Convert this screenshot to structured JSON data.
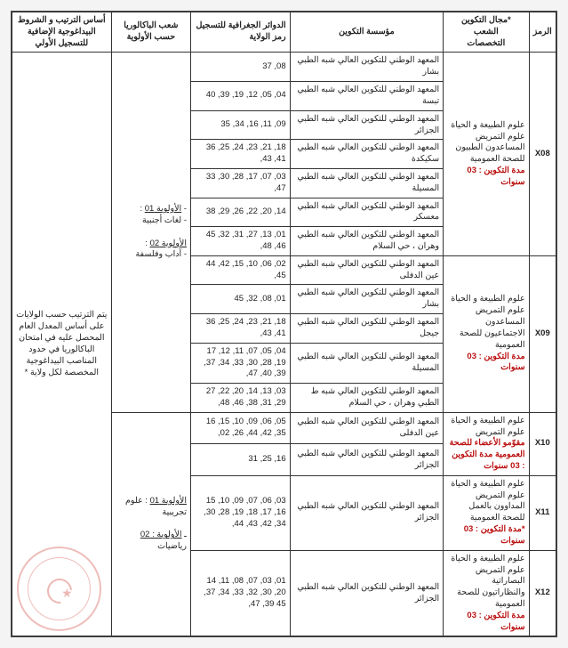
{
  "headers": {
    "code": "الرمز",
    "field": "*مجال التكوين\nالشعب\nالتخصصات",
    "inst": "مؤسسة التكوين",
    "geo": "الدوائر الجغرافية للتسجيل\nرمز الولاية",
    "bac": "شعب الباكالوريا\nحسب الأولوية",
    "rank": "أساس الترتيب و الشروط\nالبيداغوجية الإضافية\nللتسجيل الأولي"
  },
  "bac_text_1": "- الأولوية 01 :\n- لغات أجنبية\n\nالأولوية 02 :\n- آداب وفلسفة",
  "bac_text_2": "الأولوية 01 : علوم تجريبية\n\nـ الأولوية : 02 رياضيات",
  "rank_text": "يتم الترتيب حسب الولايات على أساس المعدل العام المحصل عليه في امتحان الباكالوريا في حدود المناصب البيداغوجية المخصصة لكل ولاية *",
  "rows": [
    {
      "code": "X08",
      "rowspan": 7,
      "field": "علوم الطبيعة و الحياة\nعلوم التمريض\nالمساعدون الطبيون للصحة العمومية\nمدة التكوين : 03 سنوات",
      "inst": [
        "المعهد الوطني للتكوين العالي شبه الطبي بشار",
        "المعهد الوطني للتكوين العالي شبه الطبي تبسة",
        "المعهد الوطني للتكوين العالي شبه الطبي الجزائر",
        "المعهد الوطني للتكوين العالي شبه الطبي سكيكدة",
        "المعهد الوطني للتكوين العالي شبه الطبي المسيلة",
        "المعهد الوطني للتكوين العالي شبه الطبي معسكر",
        "المعهد الوطني للتكوين العالي شبه الطبي وهران ، حي السلام"
      ],
      "geo": [
        "37 ,08",
        "40 ,39 ,19 ,12 ,05 ,04",
        "35 ,34 ,16 ,11 ,09",
        "36 ,25 ,24 ,23 ,21 ,18 ,43 ,41",
        "33 ,30 ,28 ,17 ,07 ,03 ,47",
        "38 ,29 ,26 ,22 ,20 ,14",
        "45 ,32 ,31 ,27 ,13 ,01 ,48 ,46"
      ]
    },
    {
      "code": "X09",
      "rowspan": 5,
      "field": "علوم الطبيعة و الحياة\nعلوم التمريض\nالمساعدون الاجتماعيون للصحة العمومية\nمدة التكوين : 03 سنوات",
      "inst": [
        "المعهد الوطني للتكوين العالي شبه الطبي عين الدفلى",
        "المعهد الوطني للتكوين العالي شبه الطبي بشار",
        "المعهد الوطني للتكوين العالي شبه الطبي جيجل",
        "المعهد الوطني للتكوين العالي شبه الطبي المسيلة",
        "المعهد الوطني للتكوين العالي شبه ط الطبي وهران ، حي السلام"
      ],
      "geo": [
        "44 ,42 ,15 ,10 ,06 ,02 ,45",
        "45 ,32 ,08 ,01",
        "36 ,25 ,24 ,23 ,21 ,18 ,43 ,41",
        "17 ,12 ,11 ,07 ,05 ,04 ,37 ,34 ,33 ,30 ,28 ,19 ,47 ,40 ,39",
        "27 ,22 ,20 ,14 ,13 ,03 ,48 ,46 ,38 ,31 ,29"
      ]
    },
    {
      "code": "X10",
      "rowspan": 2,
      "field": "علوم الطبيعة و الحياة\nعلوم التمريض\nمقوّمو الأعضاء للصحة العمومية       مدة التكوين : 03 سنوات",
      "inst": [
        "المعهد الوطني للتكوين العالي شبه الطبي عين الدفلى",
        "المعهد الوطني للتكوين العالي شبه الطبي الجزائر"
      ],
      "geo": [
        "16 ,15 ,10 ,09 ,06 ,05 ,02 ,26 ,44 ,42 ,35",
        "31 ,25 ,16"
      ]
    },
    {
      "code": "X11",
      "rowspan": 1,
      "field": "علوم الطبيعة و الحياة\nعلوم التمريض\nالمداوون بالعمل للصحة العمومية\n*مدة التكوين : 03 سنوات",
      "inst": [
        "المعهد الوطني للتكوين العالي شبه الطبي الجزائر"
      ],
      "geo": [
        "15 ,10 ,09 ,07 ,06 ,03 ,30 ,28 ,19 ,18 ,17 ,16 ,44 ,43 ,42 ,34"
      ]
    },
    {
      "code": "X12",
      "rowspan": 1,
      "field": "علوم الطبيعة و الحياة\nعلوم التمريض\nالبصاراتية والنظاراتيون للصحة العمومية\nمدة التكوين : 03 سنوات",
      "inst": [
        "المعهد الوطني للتكوين العالي شبه الطبي الجزائر"
      ],
      "geo": [
        "14 ,11 ,08 ,07 ,03 ,01 ,37 ,34 ,33 ,32 ,30 ,20 ,47 ,39 45"
      ]
    }
  ]
}
